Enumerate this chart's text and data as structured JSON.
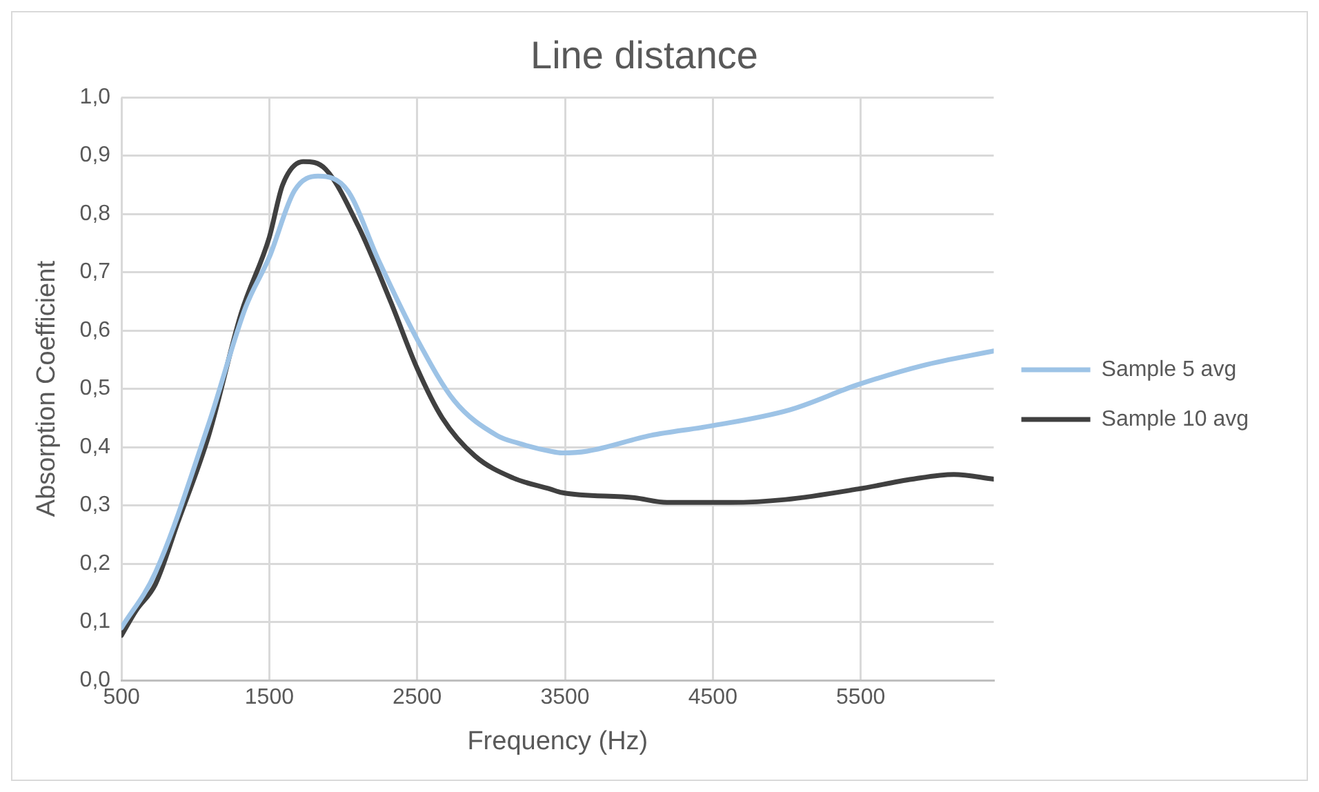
{
  "chart_data": {
    "type": "line",
    "title": "Line distance",
    "xlabel": "Frequency (Hz)",
    "ylabel": "Absorption Coefficient",
    "xlim": [
      500,
      6400
    ],
    "xticks": [
      500,
      1500,
      2500,
      3500,
      4500,
      5500
    ],
    "ylim": [
      0,
      1
    ],
    "yticks": [
      {
        "value": 0,
        "label": "0,0"
      },
      {
        "value": 0.1,
        "label": "0,1"
      },
      {
        "value": 0.2,
        "label": "0,2"
      },
      {
        "value": 0.3,
        "label": "0,3"
      },
      {
        "value": 0.4,
        "label": "0,4"
      },
      {
        "value": 0.5,
        "label": "0,5"
      },
      {
        "value": 0.6,
        "label": "0,6"
      },
      {
        "value": 0.7,
        "label": "0,7"
      },
      {
        "value": 0.8,
        "label": "0,8"
      },
      {
        "value": 0.9,
        "label": "0,9"
      },
      {
        "value": 1,
        "label": "1,0"
      }
    ],
    "grid": true,
    "legend": "right",
    "marker": "none",
    "line_style": "solid",
    "series": [
      {
        "name": "Sample 5 avg",
        "color": "#9dc3e6",
        "x": [
          500,
          730,
          1090,
          1340,
          1500,
          1670,
          1830,
          2030,
          2240,
          2500,
          2750,
          3040,
          3180,
          3400,
          3480,
          3650,
          4080,
          4480,
          5020,
          5480,
          5920,
          6400
        ],
        "values": [
          0.09,
          0.185,
          0.44,
          0.64,
          0.726,
          0.84,
          0.865,
          0.84,
          0.72,
          0.585,
          0.48,
          0.42,
          0.407,
          0.393,
          0.39,
          0.393,
          0.42,
          0.436,
          0.464,
          0.507,
          0.54,
          0.565
        ]
      },
      {
        "name": "Sample 10 avg",
        "color": "#404040",
        "x": [
          500,
          600,
          730,
          880,
          1090,
          1310,
          1500,
          1590,
          1730,
          1880,
          2100,
          2320,
          2500,
          2670,
          2890,
          3150,
          3400,
          3480,
          3970,
          4190,
          4620,
          4990,
          5480,
          5850,
          6130,
          6400
        ],
        "values": [
          0.077,
          0.12,
          0.165,
          0.27,
          0.42,
          0.63,
          0.76,
          0.85,
          0.89,
          0.877,
          0.78,
          0.65,
          0.535,
          0.45,
          0.385,
          0.347,
          0.328,
          0.322,
          0.313,
          0.305,
          0.305,
          0.31,
          0.328,
          0.345,
          0.353,
          0.345
        ]
      }
    ]
  }
}
